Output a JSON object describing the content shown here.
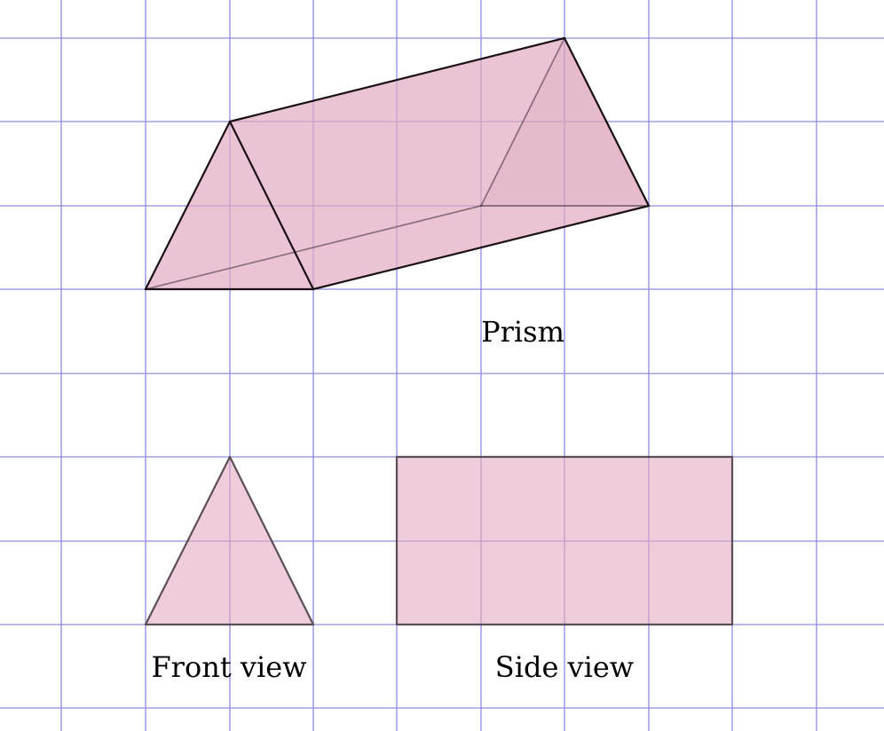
{
  "labels": {
    "prism": "Prism",
    "front_view": "Front view",
    "side_view": "Side view"
  },
  "colors": {
    "grid": "#8c8ce0",
    "fill": "#e2aac0",
    "fill_dark": "#d597ad",
    "edge": "#1a0f14",
    "view_edge": "#5c4e58"
  }
}
